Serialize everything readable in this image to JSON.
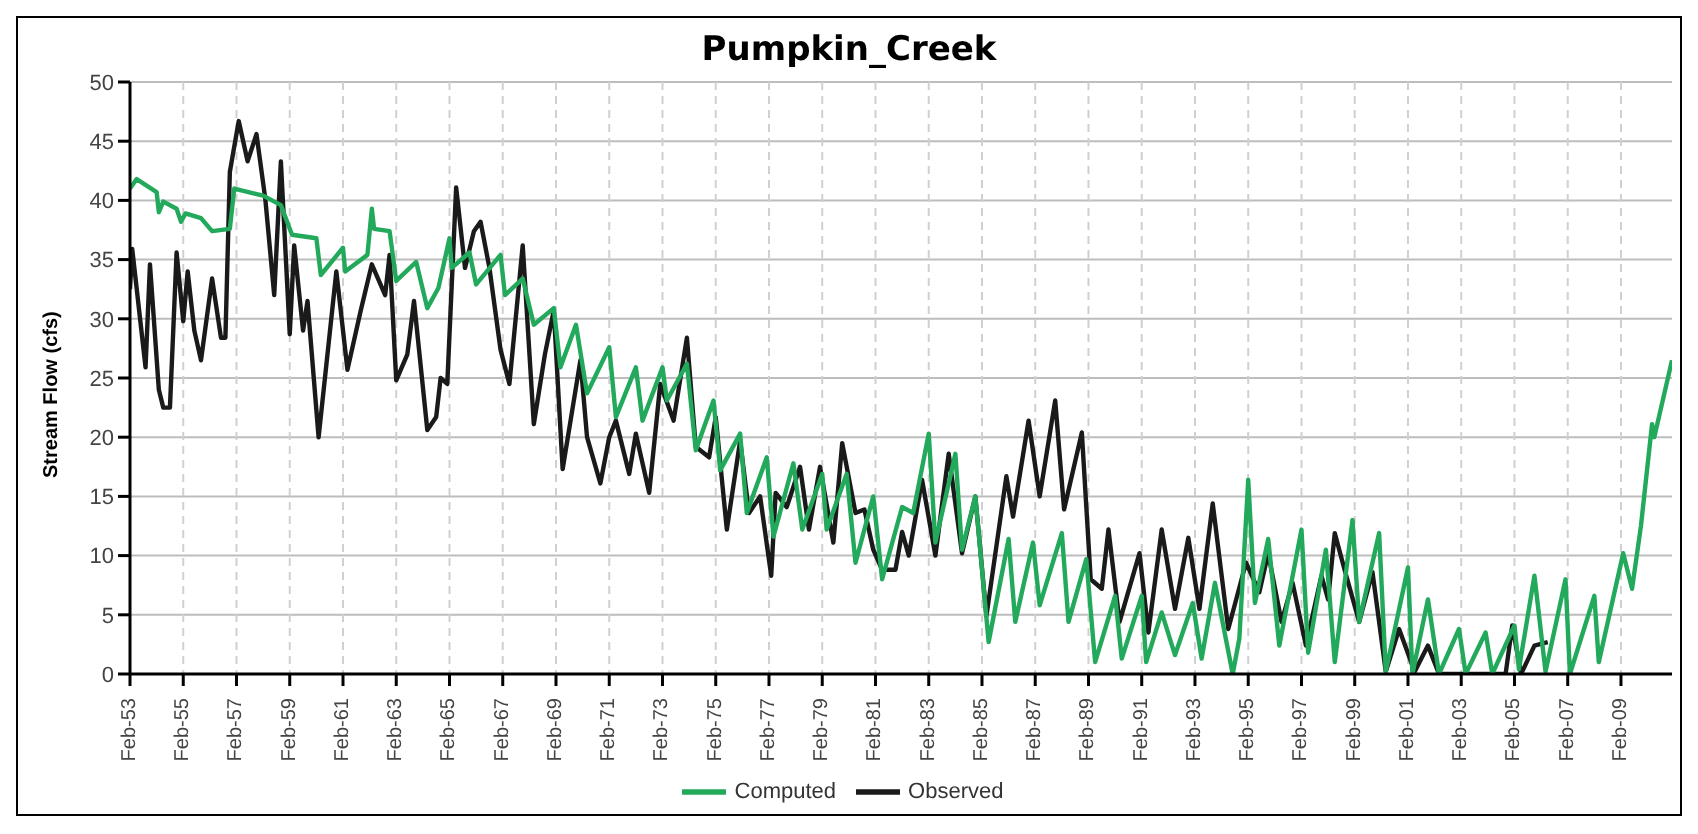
{
  "chart_data": {
    "type": "line",
    "title": "Pumpkin_Creek",
    "ylabel": "Stream Flow (cfs)",
    "ylim": [
      0,
      50
    ],
    "yticks": [
      0,
      5,
      10,
      15,
      20,
      25,
      30,
      35,
      40,
      45,
      50
    ],
    "xlim": [
      "1953-02",
      "2011-01"
    ],
    "xticks": [
      {
        "value": "1953-02",
        "label": "Feb-53"
      },
      {
        "value": "1955-02",
        "label": "Feb-55"
      },
      {
        "value": "1957-02",
        "label": "Feb-57"
      },
      {
        "value": "1959-02",
        "label": "Feb-59"
      },
      {
        "value": "1961-02",
        "label": "Feb-61"
      },
      {
        "value": "1963-02",
        "label": "Feb-63"
      },
      {
        "value": "1965-02",
        "label": "Feb-65"
      },
      {
        "value": "1967-02",
        "label": "Feb-67"
      },
      {
        "value": "1969-02",
        "label": "Feb-69"
      },
      {
        "value": "1971-02",
        "label": "Feb-71"
      },
      {
        "value": "1973-02",
        "label": "Feb-73"
      },
      {
        "value": "1975-02",
        "label": "Feb-75"
      },
      {
        "value": "1977-02",
        "label": "Feb-77"
      },
      {
        "value": "1979-02",
        "label": "Feb-79"
      },
      {
        "value": "1981-02",
        "label": "Feb-81"
      },
      {
        "value": "1983-02",
        "label": "Feb-83"
      },
      {
        "value": "1985-02",
        "label": "Feb-85"
      },
      {
        "value": "1987-02",
        "label": "Feb-87"
      },
      {
        "value": "1989-02",
        "label": "Feb-89"
      },
      {
        "value": "1991-02",
        "label": "Feb-91"
      },
      {
        "value": "1993-02",
        "label": "Feb-93"
      },
      {
        "value": "1995-02",
        "label": "Feb-95"
      },
      {
        "value": "1997-02",
        "label": "Feb-97"
      },
      {
        "value": "1999-02",
        "label": "Feb-99"
      },
      {
        "value": "2001-02",
        "label": "Feb-01"
      },
      {
        "value": "2003-02",
        "label": "Feb-03"
      },
      {
        "value": "2005-02",
        "label": "Feb-05"
      },
      {
        "value": "2007-02",
        "label": "Feb-07"
      },
      {
        "value": "2009-02",
        "label": "Feb-09"
      }
    ],
    "grid": true,
    "legend": "bottom",
    "line_style": "solid",
    "series": [
      {
        "name": "Observed",
        "color": "#1a1a1a",
        "x": [
          "1953-02",
          "1953-03",
          "1953-09",
          "1953-11",
          "1954-03",
          "1954-05",
          "1954-08",
          "1954-11",
          "1955-02",
          "1955-04",
          "1955-07",
          "1955-10",
          "1956-03",
          "1956-07",
          "1956-09",
          "1956-11",
          "1957-03",
          "1957-07",
          "1957-11",
          "1958-03",
          "1958-07",
          "1958-10",
          "1959-02",
          "1959-04",
          "1959-08",
          "1959-10",
          "1960-03",
          "1960-11",
          "1961-04",
          "1961-10",
          "1962-03",
          "1962-09",
          "1962-11",
          "1963-02",
          "1963-07",
          "1963-10",
          "1964-04",
          "1964-08",
          "1964-10",
          "1965-01",
          "1965-05",
          "1965-09",
          "1966-01",
          "1966-04",
          "1966-08",
          "1967-01",
          "1967-05",
          "1967-11",
          "1968-04",
          "1968-09",
          "1969-01",
          "1969-05",
          "1970-01",
          "1970-04",
          "1970-10",
          "1971-02",
          "1971-05",
          "1971-11",
          "1972-02",
          "1972-08",
          "1973-01",
          "1973-07",
          "1974-01",
          "1974-05",
          "1974-11",
          "1975-02",
          "1975-07",
          "1976-01",
          "1976-05",
          "1976-10",
          "1977-03",
          "1977-05",
          "1977-10",
          "1978-04",
          "1978-08",
          "1979-01",
          "1979-07",
          "1979-11",
          "1980-05",
          "1980-09",
          "1981-01",
          "1981-05",
          "1981-11",
          "1982-02",
          "1982-05",
          "1982-11",
          "1983-05",
          "1983-11",
          "1984-05",
          "1984-11",
          "1985-04",
          "1986-01",
          "1986-04",
          "1986-11",
          "1987-04",
          "1987-11",
          "1988-03",
          "1988-11",
          "1989-03",
          "1989-08",
          "1989-11",
          "1990-04",
          "1991-01",
          "1991-05",
          "1991-11",
          "1992-05",
          "1992-11",
          "1993-04",
          "1993-10",
          "1994-05",
          "1995-01",
          "1995-07",
          "1995-11",
          "1996-05",
          "1996-10",
          "1997-04",
          "1997-11",
          "1998-02",
          "1998-05",
          "1998-09",
          "1999-04",
          "1999-10",
          "2000-04",
          "2000-10",
          "2001-05",
          "2001-11",
          "2002-04",
          "2003-07",
          "2004-10",
          "2005-01",
          "2005-05",
          "2005-11",
          "2006-05"
        ],
        "values": [
          32.5,
          35.9,
          25.9,
          34.6,
          24,
          22.5,
          22.5,
          35.6,
          29.8,
          34,
          29,
          26.5,
          33.4,
          28.4,
          28.4,
          42.4,
          46.7,
          43.3,
          45.6,
          40.1,
          32,
          43.3,
          28.7,
          36.2,
          29,
          31.5,
          20,
          34,
          25.7,
          30.7,
          34.6,
          32,
          35.4,
          24.8,
          27,
          31.5,
          20.6,
          21.7,
          25,
          24.5,
          41.1,
          34.3,
          37.4,
          38.2,
          34.3,
          27.4,
          24.5,
          36.2,
          21.1,
          27,
          30.7,
          17.3,
          26.5,
          20,
          16.1,
          20,
          21.4,
          16.9,
          20.3,
          15.3,
          24.5,
          21.4,
          28.4,
          19.2,
          18.3,
          21.7,
          12.2,
          19.7,
          13.6,
          15,
          8.3,
          15.3,
          14.1,
          17.5,
          12.2,
          17.5,
          11.1,
          19.5,
          13.6,
          13.9,
          10.5,
          8.8,
          8.8,
          12,
          10,
          16.4,
          10,
          18.6,
          10.2,
          15,
          4.9,
          16.7,
          13.3,
          21.4,
          15,
          23.1,
          13.9,
          20.4,
          8,
          7.2,
          12.2,
          4.4,
          10.2,
          3.5,
          12.2,
          5.5,
          11.5,
          5.5,
          14.4,
          3.8,
          9.4,
          6.9,
          10.2,
          4.4,
          7.7,
          2.4,
          8.3,
          6.3,
          11.9,
          9.1,
          4.4,
          8.6,
          0.2,
          3.8,
          0.2,
          2.4,
          0,
          0,
          0,
          4.1,
          0,
          2.4,
          2.7
        ]
      },
      {
        "name": "Computed",
        "color": "#22a95b",
        "x": [
          "1953-02",
          "1953-05",
          "1954-02",
          "1954-03",
          "1954-05",
          "1954-11",
          "1955-01",
          "1955-03",
          "1955-10",
          "1956-03",
          "1956-11",
          "1957-01",
          "1958-02",
          "1958-10",
          "1959-02",
          "1959-03",
          "1960-02",
          "1960-04",
          "1961-02",
          "1961-03",
          "1962-01",
          "1962-03",
          "1962-04",
          "1962-11",
          "1963-02",
          "1963-11",
          "1964-04",
          "1964-09",
          "1965-02",
          "1965-03",
          "1965-11",
          "1966-02",
          "1967-01",
          "1967-03",
          "1967-11",
          "1968-04",
          "1969-01",
          "1969-04",
          "1969-11",
          "1970-04",
          "1971-02",
          "1971-05",
          "1972-02",
          "1972-05",
          "1973-02",
          "1973-04",
          "1974-01",
          "1974-05",
          "1975-01",
          "1975-04",
          "1976-01",
          "1976-04",
          "1977-01",
          "1977-04",
          "1978-01",
          "1978-05",
          "1979-02",
          "1979-04",
          "1980-01",
          "1980-05",
          "1981-01",
          "1981-05",
          "1982-02",
          "1982-07",
          "1983-02",
          "1983-05",
          "1984-02",
          "1984-05",
          "1984-11",
          "1985-05",
          "1986-02",
          "1986-05",
          "1987-01",
          "1987-04",
          "1988-02",
          "1988-05",
          "1989-01",
          "1989-05",
          "1990-02",
          "1990-05",
          "1991-02",
          "1991-04",
          "1991-11",
          "1992-05",
          "1993-01",
          "1993-05",
          "1993-11",
          "1994-07",
          "1994-10",
          "1995-02",
          "1995-05",
          "1995-11",
          "1996-04",
          "1997-02",
          "1997-05",
          "1998-01",
          "1998-05",
          "1999-01",
          "1999-04",
          "2000-01",
          "2000-04",
          "2001-02",
          "2001-04",
          "2001-11",
          "2002-04",
          "2003-01",
          "2003-04",
          "2004-01",
          "2004-04",
          "2005-02",
          "2005-04",
          "2005-11",
          "2006-04",
          "2007-01",
          "2007-03",
          "2008-02",
          "2008-04",
          "2009-03",
          "2009-07",
          "2009-11",
          "2010-04",
          "2010-05",
          "2011-01"
        ],
        "values": [
          41,
          41.8,
          40.7,
          39,
          39.9,
          39.3,
          38.2,
          38.9,
          38.5,
          37.4,
          37.6,
          41,
          40.4,
          39.6,
          37.6,
          37.1,
          36.8,
          33.7,
          36,
          34,
          35.4,
          39.3,
          37.6,
          37.4,
          33.2,
          34.8,
          30.9,
          32.6,
          36.8,
          34.3,
          35.6,
          32.9,
          35.4,
          32,
          33.4,
          29.5,
          30.9,
          25.9,
          29.5,
          23.7,
          27.6,
          21.7,
          25.9,
          21.4,
          25.9,
          23.1,
          26.2,
          18.9,
          23.1,
          17.2,
          20.3,
          13.6,
          18.3,
          11.6,
          17.8,
          12.2,
          16.9,
          12.2,
          16.9,
          9.4,
          15,
          8,
          14.1,
          13.6,
          20.3,
          11.1,
          18.6,
          10.5,
          15,
          2.7,
          11.4,
          4.4,
          11.1,
          5.8,
          11.9,
          4.4,
          9.7,
          1,
          6.6,
          1.3,
          6.6,
          1,
          5.2,
          1.6,
          6,
          1.3,
          7.7,
          0,
          3,
          16.4,
          6,
          11.4,
          2.4,
          12.2,
          1.8,
          10.5,
          1,
          13,
          4.4,
          11.9,
          0.2,
          9,
          0,
          6.3,
          0,
          3.8,
          0,
          3.5,
          0,
          4.1,
          0.4,
          8.3,
          0.2,
          8,
          0,
          6.6,
          1,
          10.2,
          7.2,
          12.5,
          21.1,
          20,
          26.5
        ]
      }
    ]
  }
}
